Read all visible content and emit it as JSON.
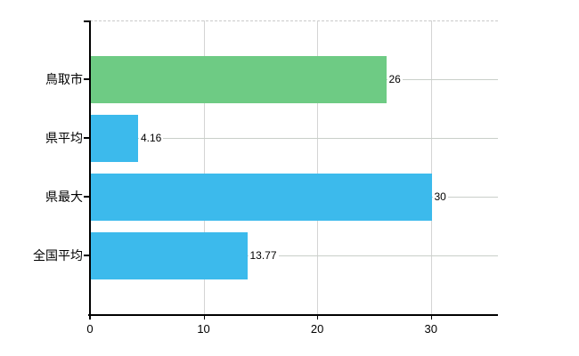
{
  "chart": {
    "background_color": "#ffffff",
    "axis_color": "#000000",
    "grid_color": "#c9cfc9",
    "top_border_color": "#c9c9c9"
  },
  "chart_data": {
    "type": "bar",
    "orientation": "horizontal",
    "title": "",
    "xlabel": "",
    "ylabel": "",
    "categories": [
      "鳥取市",
      "県平均",
      "県最大",
      "全国平均"
    ],
    "values": [
      26,
      4.16,
      30,
      13.77
    ],
    "value_labels": [
      "26",
      "4.16",
      "30",
      "13.77"
    ],
    "bar_colors": [
      "#6ecb84",
      "#3cbaec",
      "#3cbaec",
      "#3cbaec"
    ],
    "xticks": [
      0,
      10,
      20,
      30
    ],
    "xtick_labels": [
      "0",
      "10",
      "20",
      "30"
    ],
    "xlim": [
      0,
      35.9
    ],
    "grid": true,
    "legend": false
  }
}
